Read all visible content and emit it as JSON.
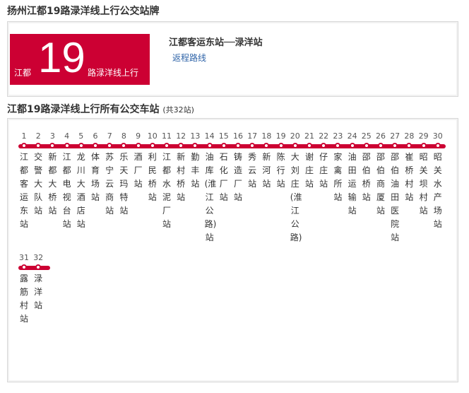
{
  "page_title": "扬州江都19路渌洋线上行公交站牌",
  "badge": {
    "left": "江都",
    "number": "19",
    "right": "路渌洋线上行"
  },
  "route_name": "江都客运东站──渌洋站",
  "return_link": "返程路线",
  "stations_title": "江都19路渌洋线上行所有公交车站",
  "stations_count": "(共32站)",
  "colors": {
    "accent": "#cc0033",
    "link": "#2f64a8"
  },
  "stops": [
    {
      "n": "1",
      "name": "江都客运东站"
    },
    {
      "n": "2",
      "name": "交警大队站"
    },
    {
      "n": "3",
      "name": "新都大桥站"
    },
    {
      "n": "4",
      "name": "江都电视台站"
    },
    {
      "n": "5",
      "name": "龙川大酒店站"
    },
    {
      "n": "6",
      "name": "体育场站"
    },
    {
      "n": "7",
      "name": "苏宁云商站"
    },
    {
      "n": "8",
      "name": "乐天玛特站"
    },
    {
      "n": "9",
      "name": "酒厂站"
    },
    {
      "n": "10",
      "name": "利民桥站"
    },
    {
      "n": "11",
      "name": "江都水泥厂站"
    },
    {
      "n": "12",
      "name": "新村桥站"
    },
    {
      "n": "13",
      "name": "勤丰站"
    },
    {
      "n": "14",
      "name": "油库(淮江公路)站"
    },
    {
      "n": "15",
      "name": "石化厂站"
    },
    {
      "n": "16",
      "name": "铸造厂站"
    },
    {
      "n": "17",
      "name": "秀云站"
    },
    {
      "n": "18",
      "name": "新河站"
    },
    {
      "n": "19",
      "name": "陈行站"
    },
    {
      "n": "20",
      "name": "大刘庄(淮江公路)"
    },
    {
      "n": "21",
      "name": "谢庄站"
    },
    {
      "n": "22",
      "name": "仔庄站"
    },
    {
      "n": "23",
      "name": "家禽所站"
    },
    {
      "n": "24",
      "name": "油田运输站"
    },
    {
      "n": "25",
      "name": "邵伯桥站"
    },
    {
      "n": "26",
      "name": "邵伯商厦站"
    },
    {
      "n": "27",
      "name": "邵伯油田医院站"
    },
    {
      "n": "28",
      "name": "崔桥村站"
    },
    {
      "n": "29",
      "name": "昭关坝村站"
    },
    {
      "n": "30",
      "name": "昭关水产场站"
    },
    {
      "n": "31",
      "name": "露筋村站"
    },
    {
      "n": "32",
      "name": "渌洋站"
    }
  ]
}
